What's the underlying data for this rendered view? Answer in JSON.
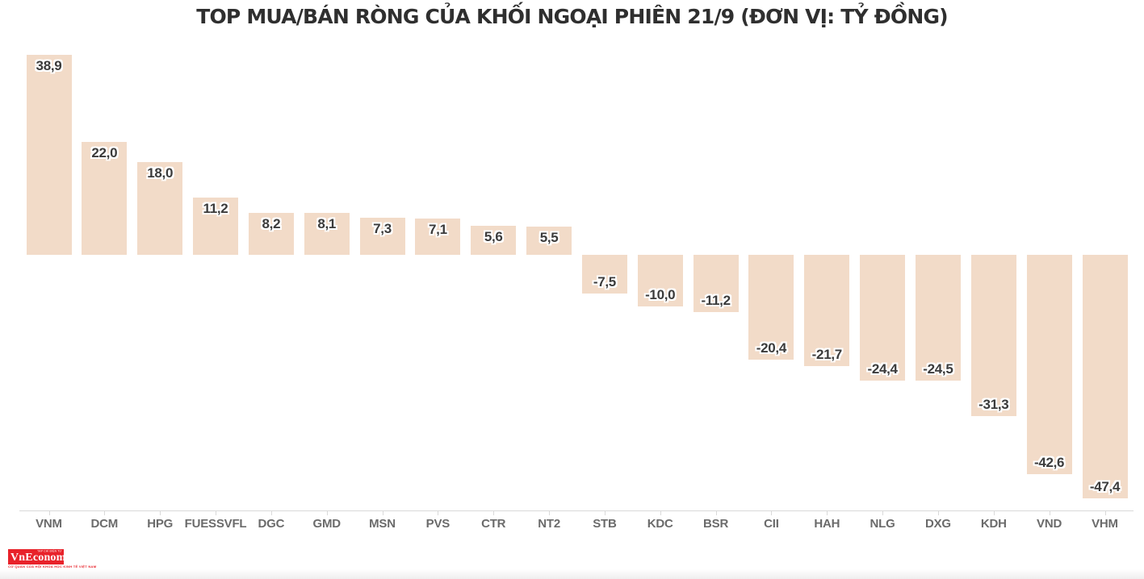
{
  "title": "TOP MUA/BÁN RÒNG CỦA KHỐI NGOẠI PHIÊN 21/9 (ĐƠN VỊ: TỶ ĐỒNG)",
  "chart_data": {
    "type": "bar",
    "orientation": "vertical",
    "title": "TOP MUA/BÁN RÒNG CỦA KHỐI NGOẠI PHIÊN 21/9 (ĐƠN VỊ: TỶ ĐỒNG)",
    "unit": "tỷ đồng",
    "categories": [
      "VNM",
      "DCM",
      "HPG",
      "FUESSVFL",
      "DGC",
      "GMD",
      "MSN",
      "PVS",
      "CTR",
      "NT2",
      "STB",
      "KDC",
      "BSR",
      "CII",
      "HAH",
      "NLG",
      "DXG",
      "KDH",
      "VND",
      "VHM"
    ],
    "values": [
      38.9,
      22.0,
      18.0,
      11.2,
      8.2,
      8.1,
      7.3,
      7.1,
      5.6,
      5.5,
      -7.5,
      -10.0,
      -11.2,
      -20.4,
      -21.7,
      -24.4,
      -24.5,
      -31.3,
      -42.6,
      -47.4
    ],
    "value_labels": [
      "38,9",
      "22,0",
      "18,0",
      "11,2",
      "8,2",
      "8,1",
      "7,3",
      "7,1",
      "5,6",
      "5,5",
      "-7,5",
      "-10,0",
      "-11,2",
      "-20,4",
      "-21,7",
      "-24,4",
      "-24,5",
      "-31,3",
      "-42,6",
      "-47,4"
    ],
    "xlabel": "",
    "ylabel": "",
    "ylim": [
      -47.4,
      38.9
    ],
    "grid": false,
    "legend": false,
    "bar_color": "#f2dbc8",
    "value_label_color": "#3b3b3b",
    "category_label_color": "#6b6b6b",
    "axis_line_color": "#d9d9d9",
    "title_color": "#2f2f2f"
  },
  "branding": {
    "logo_text": "VnEconomy",
    "logo_top_text": "TẠP CHÍ ĐIỆN TỬ",
    "logo_sub_text": "CƠ QUAN CỦA HỘI KHOA HỌC KINH TẾ VIỆT NAM",
    "logo_bg": "#e8222a"
  }
}
